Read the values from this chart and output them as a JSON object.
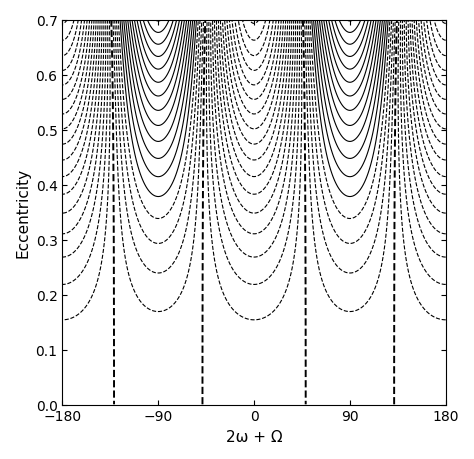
{
  "xlabel": "2ω + Ω",
  "ylabel": "Eccentricity",
  "xlim": [
    -180,
    180
  ],
  "ylim": [
    0,
    0.7
  ],
  "xticks": [
    -180,
    -90,
    0,
    90,
    180
  ],
  "yticks": [
    0,
    0.1,
    0.2,
    0.3,
    0.4,
    0.5,
    0.6,
    0.7
  ],
  "background_color": "#ffffff",
  "line_color": "#000000",
  "linewidth": 0.8,
  "figsize": [
    4.74,
    4.6
  ],
  "dpi": 100,
  "n_levels": 30,
  "L_param": 0.3,
  "g_points": 1200,
  "e_points": 800
}
